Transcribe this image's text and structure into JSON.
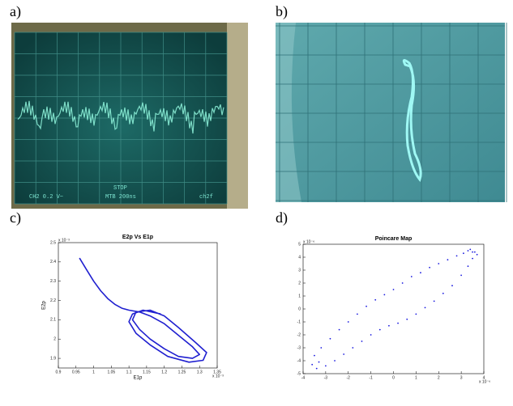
{
  "panel_labels": [
    "a)",
    "b)",
    "c)",
    "d)"
  ],
  "screen_text": [
    "CH2   0.2 V~",
    "STOP",
    "MTB 200ns",
    "ch2f"
  ],
  "chart_data": [
    {
      "type": "line",
      "title": "E2p Vs E1p",
      "x_label": "E1p",
      "y_label": "E2p",
      "x_multiplier": "x 10⁻³",
      "y_multiplier": "x 10⁻³",
      "xlim": [
        0.9,
        1.35
      ],
      "ylim": [
        1.85,
        2.5
      ],
      "xticks": [
        0.9,
        0.95,
        1,
        1.05,
        1.1,
        1.15,
        1.2,
        1.25,
        1.3,
        1.35
      ],
      "yticks": [
        1.9,
        2,
        2.1,
        2.2,
        2.3,
        2.4,
        2.5
      ],
      "series": [
        {
          "color": "#2020d0",
          "x": [
            0.96,
            0.98,
            1.0,
            1.02,
            1.04,
            1.06,
            1.08,
            1.1,
            1.13,
            1.16,
            1.2,
            1.24,
            1.28,
            1.3,
            1.28,
            1.24,
            1.2,
            1.16,
            1.13,
            1.11,
            1.12,
            1.16,
            1.2,
            1.24,
            1.29,
            1.32,
            1.31,
            1.27,
            1.21,
            1.16,
            1.12,
            1.1,
            1.11,
            1.14,
            1.19
          ],
          "values": [
            2.42,
            2.36,
            2.3,
            2.25,
            2.21,
            2.18,
            2.16,
            2.15,
            2.14,
            2.12,
            2.08,
            2.02,
            1.96,
            1.92,
            1.9,
            1.91,
            1.95,
            2.0,
            2.05,
            2.1,
            2.14,
            2.15,
            2.12,
            2.06,
            1.98,
            1.93,
            1.89,
            1.88,
            1.91,
            1.97,
            2.03,
            2.09,
            2.13,
            2.15,
            2.13
          ]
        }
      ]
    },
    {
      "type": "scatter",
      "title": "Poincare Map",
      "x_multiplier": "x 10⁻⁶",
      "y_multiplier": "x 10⁻⁶",
      "xlim": [
        -4,
        4
      ],
      "ylim": [
        -5,
        5
      ],
      "xticks": [
        -4,
        -3,
        -2,
        -1,
        0,
        1,
        2,
        3,
        4
      ],
      "yticks": [
        -5,
        -4,
        -3,
        -2,
        -1,
        0,
        1,
        2,
        3,
        4,
        5
      ],
      "series": [
        {
          "color": "#1a1ae0",
          "x": [
            -3.5,
            -3.2,
            -2.8,
            -2.4,
            -2,
            -1.6,
            -1.2,
            -0.8,
            -0.4,
            0,
            0.4,
            0.8,
            1.2,
            1.6,
            2,
            2.4,
            2.8,
            3.1,
            3.3,
            3.5,
            3.7,
            -3.6,
            -3.4,
            -3.0,
            -2.6,
            -2.2,
            -1.8,
            -1.4,
            -1.0,
            -0.6,
            -0.2,
            0.2,
            0.6,
            1.0,
            1.4,
            1.8,
            2.2,
            2.6,
            3.0,
            3.3,
            3.5,
            3.6,
            -3.3,
            3.4
          ],
          "values": [
            -3.6,
            -3.0,
            -2.3,
            -1.6,
            -1.0,
            -0.4,
            0.2,
            0.7,
            1.1,
            1.5,
            2.0,
            2.5,
            2.8,
            3.2,
            3.5,
            3.8,
            4.1,
            4.3,
            4.5,
            4.4,
            4.2,
            -4.3,
            -4.6,
            -4.4,
            -4.0,
            -3.5,
            -3.0,
            -2.5,
            -2.0,
            -1.6,
            -1.3,
            -1.1,
            -0.8,
            -0.4,
            0.1,
            0.6,
            1.2,
            1.8,
            2.6,
            3.3,
            3.9,
            4.4,
            -4.1,
            4.6
          ]
        }
      ]
    }
  ]
}
